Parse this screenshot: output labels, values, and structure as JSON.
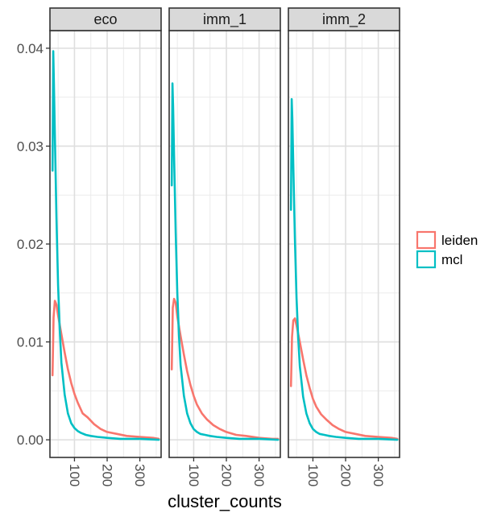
{
  "chart_data": {
    "type": "line",
    "xlabel": "cluster_counts",
    "ylabel": "",
    "xlim": [
      25,
      365
    ],
    "ylim": [
      -0.0018,
      0.0418
    ],
    "x_ticks": [
      100,
      200,
      300
    ],
    "x_tick_labels": [
      "100",
      "200",
      "300"
    ],
    "y_ticks": [
      0,
      0.01,
      0.02,
      0.03,
      0.04
    ],
    "y_tick_labels": [
      "0.00",
      "0.01",
      "0.02",
      "0.03",
      "0.04"
    ],
    "grid": true,
    "legend_position": "right",
    "legend": [
      {
        "name": "leiden",
        "color": "#F8766D"
      },
      {
        "name": "mcl",
        "color": "#00BFC4"
      }
    ],
    "facets": [
      {
        "strip": "eco",
        "series": [
          {
            "name": "leiden",
            "color": "#F8766D",
            "x": [
              33,
              36,
              40,
              45,
              50,
              60,
              70,
              80,
              90,
              100,
              110,
              125,
              140,
              160,
              180,
              200,
              230,
              260,
              300,
              340,
              358
            ],
            "y": [
              0.0066,
              0.0125,
              0.0142,
              0.0138,
              0.0127,
              0.0108,
              0.0089,
              0.0072,
              0.0058,
              0.0047,
              0.0038,
              0.0027,
              0.0023,
              0.0016,
              0.0011,
              0.0008,
              0.0006,
              0.0004,
              0.0003,
              0.0002,
              0.0001
            ]
          },
          {
            "name": "mcl",
            "color": "#00BFC4",
            "x": [
              33,
              35,
              37,
              40,
              45,
              50,
              55,
              60,
              70,
              80,
              90,
              100,
              110,
              120,
              135,
              150,
              170,
              200,
              240,
              300,
              358
            ],
            "y": [
              0.0275,
              0.0397,
              0.0365,
              0.0312,
              0.0226,
              0.0158,
              0.0112,
              0.0079,
              0.0046,
              0.0027,
              0.0017,
              0.0012,
              0.0009,
              0.0007,
              0.0005,
              0.0004,
              0.0003,
              0.0002,
              0.0001,
              0.0001,
              0.0
            ]
          }
        ]
      },
      {
        "strip": "imm_1",
        "series": [
          {
            "name": "leiden",
            "color": "#F8766D",
            "x": [
              33,
              36,
              40,
              45,
              50,
              60,
              70,
              80,
              90,
              100,
              110,
              125,
              140,
              160,
              180,
              200,
              230,
              260,
              300,
              340,
              358
            ],
            "y": [
              0.0072,
              0.0135,
              0.0144,
              0.014,
              0.0126,
              0.0106,
              0.0087,
              0.007,
              0.0056,
              0.0045,
              0.0036,
              0.0027,
              0.0021,
              0.0015,
              0.0011,
              0.0008,
              0.0005,
              0.0004,
              0.0002,
              0.0001,
              0.0001
            ]
          },
          {
            "name": "mcl",
            "color": "#00BFC4",
            "x": [
              33,
              35,
              37,
              40,
              45,
              50,
              55,
              60,
              70,
              80,
              90,
              100,
              110,
              120,
              135,
              150,
              170,
              200,
              240,
              300,
              358
            ],
            "y": [
              0.026,
              0.0364,
              0.034,
              0.029,
              0.0212,
              0.015,
              0.0106,
              0.0076,
              0.0045,
              0.0027,
              0.0017,
              0.0011,
              0.0008,
              0.0006,
              0.0005,
              0.0004,
              0.0003,
              0.0002,
              0.0001,
              0.0001,
              0.0
            ]
          }
        ]
      },
      {
        "strip": "imm_2",
        "series": [
          {
            "name": "leiden",
            "color": "#F8766D",
            "x": [
              33,
              36,
              40,
              45,
              50,
              60,
              70,
              80,
              90,
              100,
              110,
              125,
              140,
              160,
              180,
              200,
              230,
              260,
              300,
              340,
              358
            ],
            "y": [
              0.0055,
              0.0105,
              0.0122,
              0.0124,
              0.0117,
              0.01,
              0.0082,
              0.0066,
              0.0053,
              0.0042,
              0.0034,
              0.0026,
              0.0021,
              0.0015,
              0.0011,
              0.0008,
              0.0006,
              0.0004,
              0.0003,
              0.0002,
              0.0001
            ]
          },
          {
            "name": "mcl",
            "color": "#00BFC4",
            "x": [
              33,
              35,
              37,
              40,
              45,
              50,
              55,
              60,
              70,
              80,
              90,
              100,
              110,
              120,
              135,
              150,
              170,
              200,
              240,
              300,
              358
            ],
            "y": [
              0.0235,
              0.0348,
              0.0328,
              0.028,
              0.0205,
              0.0145,
              0.0104,
              0.0075,
              0.0044,
              0.0027,
              0.0017,
              0.0011,
              0.0008,
              0.0006,
              0.0005,
              0.0004,
              0.0003,
              0.0002,
              0.0001,
              0.0001,
              0.0
            ]
          }
        ]
      }
    ]
  }
}
